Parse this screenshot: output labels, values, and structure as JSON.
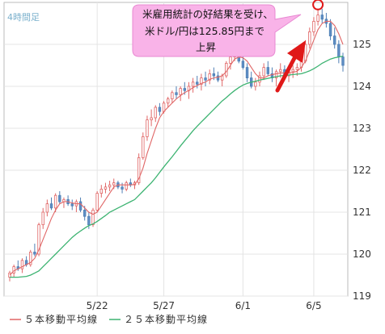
{
  "chart_data": {
    "type": "candlestick",
    "timeframe_label": "4時間足",
    "y_ticks": [
      119,
      120,
      121,
      122,
      123,
      124,
      125
    ],
    "ylim": [
      119,
      126
    ],
    "x_tick_labels": [
      {
        "label": "5/22",
        "idx": 21
      },
      {
        "label": "5/27",
        "idx": 37
      },
      {
        "label": "6/1",
        "idx": 56
      },
      {
        "label": "6/5",
        "idx": 73
      }
    ],
    "grid": true,
    "candles": [
      [
        119.45,
        119.6,
        119.35,
        119.55
      ],
      [
        119.55,
        119.75,
        119.45,
        119.7
      ],
      [
        119.7,
        119.85,
        119.6,
        119.65
      ],
      [
        119.65,
        119.9,
        119.55,
        119.85
      ],
      [
        119.85,
        119.95,
        119.7,
        119.75
      ],
      [
        119.75,
        120.1,
        119.7,
        120.05
      ],
      [
        120.05,
        120.25,
        119.95,
        120.0
      ],
      [
        120.0,
        120.75,
        119.95,
        120.7
      ],
      [
        120.7,
        121.1,
        120.6,
        121.0
      ],
      [
        121.0,
        121.3,
        120.9,
        121.2
      ],
      [
        121.2,
        121.35,
        121.05,
        121.1
      ],
      [
        121.1,
        121.45,
        121.0,
        121.4
      ],
      [
        121.4,
        121.5,
        121.2,
        121.25
      ],
      [
        121.25,
        121.35,
        121.1,
        121.3
      ],
      [
        121.3,
        121.4,
        121.15,
        121.2
      ],
      [
        121.2,
        121.3,
        121.05,
        121.15
      ],
      [
        121.15,
        121.3,
        121.0,
        121.25
      ],
      [
        121.25,
        121.35,
        121.0,
        121.05
      ],
      [
        121.05,
        121.15,
        120.8,
        120.9
      ],
      [
        120.9,
        121.0,
        120.6,
        120.7
      ],
      [
        120.7,
        121.1,
        120.65,
        121.05
      ],
      [
        121.05,
        121.5,
        121.0,
        121.45
      ],
      [
        121.45,
        121.65,
        121.35,
        121.55
      ],
      [
        121.55,
        121.7,
        121.45,
        121.6
      ],
      [
        121.6,
        121.75,
        121.5,
        121.65
      ],
      [
        121.65,
        121.8,
        121.55,
        121.7
      ],
      [
        121.7,
        121.75,
        121.55,
        121.6
      ],
      [
        121.6,
        121.7,
        121.45,
        121.55
      ],
      [
        121.55,
        121.75,
        121.5,
        121.7
      ],
      [
        121.7,
        121.8,
        121.6,
        121.65
      ],
      [
        121.65,
        121.75,
        121.55,
        121.7
      ],
      [
        121.7,
        122.4,
        121.65,
        122.3
      ],
      [
        122.3,
        122.9,
        122.25,
        122.8
      ],
      [
        122.8,
        123.3,
        122.7,
        123.2
      ],
      [
        123.2,
        123.45,
        123.05,
        123.25
      ],
      [
        123.25,
        123.55,
        123.15,
        123.5
      ],
      [
        123.5,
        123.6,
        123.3,
        123.4
      ],
      [
        123.4,
        123.65,
        123.35,
        123.6
      ],
      [
        123.6,
        123.75,
        123.5,
        123.7
      ],
      [
        123.7,
        123.9,
        123.6,
        123.85
      ],
      [
        123.85,
        124.0,
        123.7,
        123.8
      ],
      [
        123.8,
        124.0,
        123.65,
        123.95
      ],
      [
        123.95,
        124.1,
        123.8,
        123.9
      ],
      [
        123.9,
        124.1,
        123.7,
        124.0
      ],
      [
        124.0,
        124.2,
        123.85,
        124.1
      ],
      [
        124.1,
        124.25,
        123.95,
        124.05
      ],
      [
        124.05,
        124.3,
        123.9,
        124.2
      ],
      [
        124.2,
        124.35,
        124.0,
        124.15
      ],
      [
        124.15,
        124.4,
        124.05,
        124.3
      ],
      [
        124.3,
        124.45,
        124.15,
        124.25
      ],
      [
        124.25,
        124.35,
        124.1,
        124.15
      ],
      [
        124.15,
        124.3,
        124.0,
        124.25
      ],
      [
        124.25,
        124.6,
        124.2,
        124.55
      ],
      [
        124.55,
        124.8,
        124.4,
        124.7
      ],
      [
        124.7,
        125.05,
        124.6,
        124.95
      ],
      [
        124.95,
        125.0,
        124.55,
        124.6
      ],
      [
        124.6,
        124.8,
        124.4,
        124.45
      ],
      [
        124.45,
        124.55,
        124.1,
        124.2
      ],
      [
        124.2,
        124.35,
        123.95,
        124.0
      ],
      [
        124.0,
        124.2,
        123.9,
        124.1
      ],
      [
        124.1,
        124.35,
        124.0,
        124.25
      ],
      [
        124.25,
        124.55,
        124.15,
        124.45
      ],
      [
        124.45,
        124.6,
        124.25,
        124.3
      ],
      [
        124.3,
        124.45,
        124.1,
        124.2
      ],
      [
        124.2,
        124.4,
        124.0,
        124.35
      ],
      [
        124.35,
        124.55,
        124.2,
        124.4
      ],
      [
        124.4,
        124.5,
        124.15,
        124.25
      ],
      [
        124.25,
        124.45,
        124.1,
        124.35
      ],
      [
        124.35,
        124.5,
        124.2,
        124.4
      ],
      [
        124.4,
        124.55,
        124.25,
        124.45
      ],
      [
        124.45,
        124.7,
        124.35,
        124.6
      ],
      [
        124.6,
        125.1,
        124.55,
        125.0
      ],
      [
        125.0,
        125.4,
        124.9,
        125.3
      ],
      [
        125.3,
        125.65,
        125.2,
        125.55
      ],
      [
        125.55,
        125.85,
        125.45,
        125.7
      ],
      [
        125.7,
        125.85,
        125.5,
        125.6
      ],
      [
        125.6,
        125.75,
        125.4,
        125.5
      ],
      [
        125.5,
        125.6,
        125.1,
        125.2
      ],
      [
        125.2,
        125.4,
        124.9,
        125.0
      ],
      [
        125.0,
        125.1,
        124.55,
        124.7
      ],
      [
        124.7,
        124.8,
        124.35,
        124.5
      ]
    ],
    "ma5": [
      119.5,
      119.6,
      119.65,
      119.7,
      119.75,
      119.8,
      119.9,
      120.1,
      120.35,
      120.6,
      120.85,
      121.05,
      121.2,
      121.25,
      121.25,
      121.22,
      121.2,
      121.2,
      121.1,
      121.0,
      120.95,
      121.0,
      121.15,
      121.3,
      121.45,
      121.6,
      121.65,
      121.65,
      121.65,
      121.65,
      121.66,
      121.8,
      122.05,
      122.4,
      122.7,
      123.0,
      123.25,
      123.4,
      123.5,
      123.6,
      123.7,
      123.78,
      123.85,
      123.9,
      123.97,
      124.02,
      124.07,
      124.1,
      124.17,
      124.2,
      124.22,
      124.25,
      124.35,
      124.5,
      124.65,
      124.7,
      124.68,
      124.6,
      124.45,
      124.3,
      124.2,
      124.2,
      124.25,
      124.28,
      124.3,
      124.32,
      124.32,
      124.32,
      124.33,
      124.36,
      124.45,
      124.6,
      124.85,
      125.1,
      125.35,
      125.5,
      125.55,
      125.55,
      125.45,
      125.25,
      125.0
    ],
    "ma25": [
      119.45,
      119.45,
      119.45,
      119.46,
      119.47,
      119.5,
      119.55,
      119.6,
      119.7,
      119.8,
      119.9,
      120.0,
      120.1,
      120.2,
      120.3,
      120.4,
      120.48,
      120.55,
      120.62,
      120.68,
      120.72,
      120.78,
      120.85,
      120.92,
      121.0,
      121.05,
      121.1,
      121.15,
      121.2,
      121.25,
      121.3,
      121.4,
      121.5,
      121.6,
      121.7,
      121.82,
      121.95,
      122.08,
      122.2,
      122.32,
      122.45,
      122.58,
      122.7,
      122.82,
      122.94,
      123.05,
      123.15,
      123.25,
      123.35,
      123.45,
      123.55,
      123.65,
      123.73,
      123.82,
      123.9,
      123.97,
      124.03,
      124.07,
      124.1,
      124.12,
      124.15,
      124.17,
      124.19,
      124.21,
      124.23,
      124.25,
      124.26,
      124.27,
      124.28,
      124.29,
      124.3,
      124.33,
      124.37,
      124.42,
      124.48,
      124.55,
      124.6,
      124.65,
      124.68,
      124.7,
      124.72
    ],
    "annotation": {
      "text_lines": [
        "米雇用統計の好結果を受け、",
        "米ドル/円は125.85円まで",
        "上昇"
      ],
      "target_idx": 74,
      "target_value": 125.85
    },
    "legend": [
      {
        "name": "５本移動平均線",
        "color": "#e06666"
      },
      {
        "name": "２５本移動平均線",
        "color": "#3cb371"
      }
    ]
  },
  "colors": {
    "up_body": "#ffffff",
    "up_line": "#e06666",
    "down_body": "#5f8fc5",
    "down_line": "#4f7fb5",
    "grid": "#e4e4e4",
    "callout_fill": "#f9b3e8",
    "callout_stroke": "#e889d2",
    "arrow": "#e01818",
    "circle": "#e01818"
  }
}
